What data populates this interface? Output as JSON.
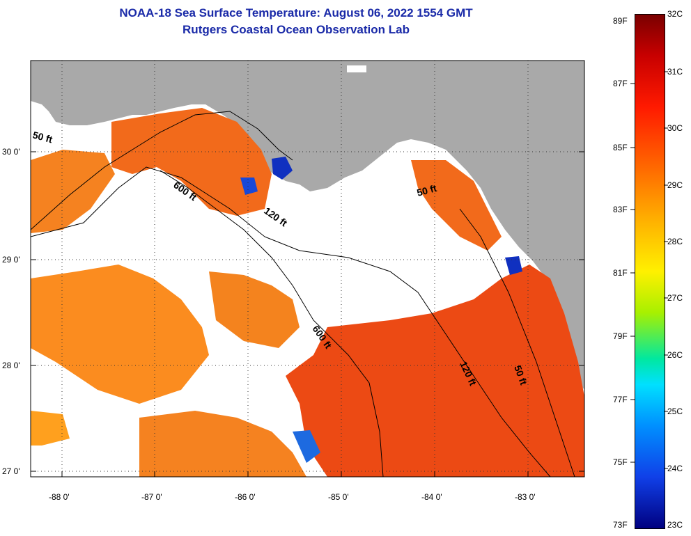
{
  "header": {
    "title_line1": "NOAA-18 Sea Surface Temperature:  August 06, 2022 1554 GMT",
    "title_line2": "Rutgers Coastal Ocean Observation Lab"
  },
  "map": {
    "lat_labels": [
      "30 0'",
      "29 0'",
      "28 0'",
      "27 0'"
    ],
    "lon_labels": [
      "-88 0'",
      "-87 0'",
      "-86 0'",
      "-85 0'",
      "-84 0'",
      "-83 0'"
    ],
    "contour_labels": [
      "50 ft",
      "600 ft",
      "120 ft",
      "50 ft",
      "600 ft",
      "120 ft",
      "50 ft"
    ]
  },
  "colorbar": {
    "fahrenheit_labels": [
      "89F",
      "87F",
      "85F",
      "83F",
      "81F",
      "79F",
      "77F",
      "75F",
      "73F"
    ],
    "celsius_labels": [
      "32C",
      "31C",
      "30C",
      "29C",
      "28C",
      "27C",
      "26C",
      "25C",
      "24C",
      "23C"
    ]
  },
  "colors": {
    "land": "#a9a9a9",
    "title": "#1a2aa8",
    "sst_warm": "#f04a10",
    "sst_orange": "#ff8c1a"
  }
}
